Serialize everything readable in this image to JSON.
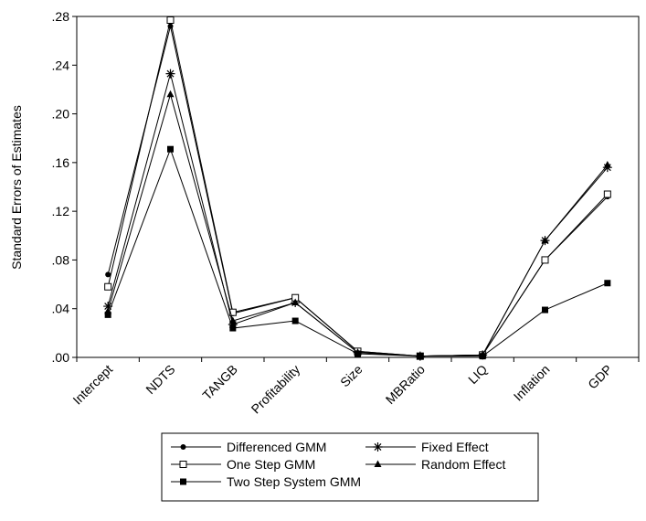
{
  "chart_data": {
    "type": "line",
    "title": "",
    "xlabel": "",
    "ylabel": "Standard Errors of Estimates",
    "categories": [
      "Intercept",
      "NDTS",
      "TANGB",
      "Profitability",
      "Size",
      "MBRatio",
      "LIQ",
      "Inflation",
      "GDP"
    ],
    "ylim": [
      0,
      0.28
    ],
    "y_ticks": [
      ".00",
      ".04",
      ".08",
      ".12",
      ".16",
      ".20",
      ".24",
      ".28"
    ],
    "y_tick_values": [
      0,
      0.04,
      0.08,
      0.12,
      0.16,
      0.2,
      0.24,
      0.28
    ],
    "grid": false,
    "legend_position": "bottom",
    "series": [
      {
        "name": "Differenced GMM",
        "marker": "circle",
        "values": [
          0.068,
          0.272,
          0.036,
          0.049,
          0.005,
          0.001,
          0.002,
          0.08,
          0.132
        ]
      },
      {
        "name": "Fixed Effect",
        "marker": "star",
        "values": [
          0.042,
          0.233,
          0.027,
          0.045,
          0.004,
          0.001,
          0.002,
          0.096,
          0.156
        ]
      },
      {
        "name": "One Step GMM",
        "marker": "open-square",
        "values": [
          0.058,
          0.277,
          0.037,
          0.049,
          0.005,
          0.001,
          0.002,
          0.08,
          0.134
        ]
      },
      {
        "name": "Random Effect",
        "marker": "triangle",
        "values": [
          0.038,
          0.216,
          0.03,
          0.045,
          0.004,
          0.001,
          0.002,
          0.096,
          0.158
        ]
      },
      {
        "name": "Two Step System GMM",
        "marker": "filled-square",
        "values": [
          0.035,
          0.171,
          0.024,
          0.03,
          0.003,
          0.001,
          0.001,
          0.039,
          0.061
        ]
      }
    ]
  }
}
